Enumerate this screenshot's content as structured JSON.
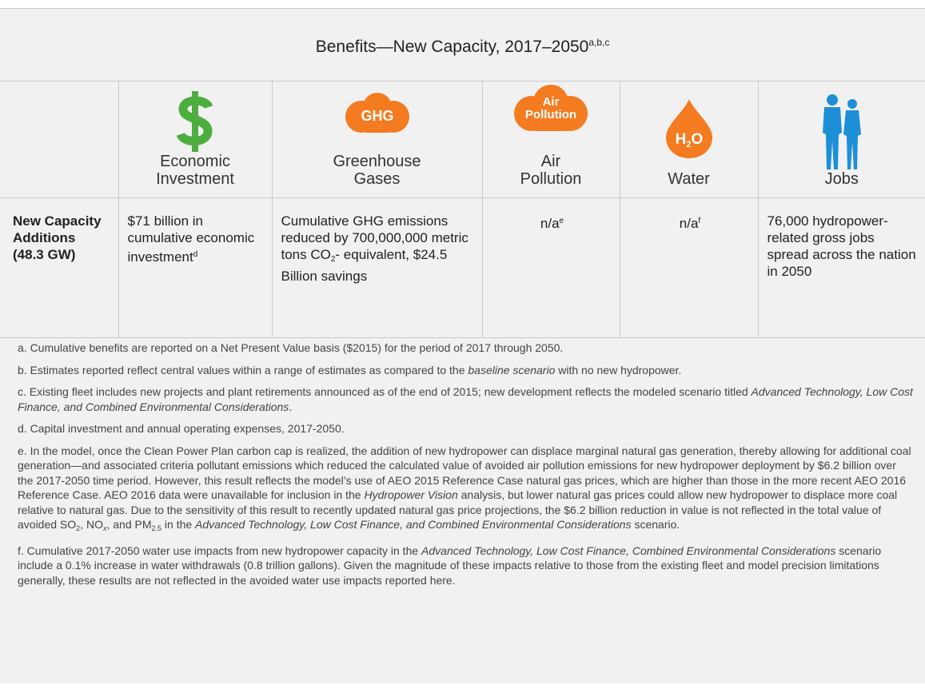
{
  "title": {
    "text": "Benefits—New Capacity, 2017–2050",
    "sup": "a,b,c"
  },
  "columns": [
    {
      "label": [
        "Economic",
        "Investment"
      ]
    },
    {
      "icon": "GHG",
      "label": [
        "Greenhouse",
        "Gases"
      ]
    },
    {
      "icon": [
        "Air",
        "Pollution"
      ],
      "label": [
        "Air",
        "Pollution"
      ]
    },
    {
      "icon": [
        "H",
        "2",
        "O"
      ],
      "label": [
        "Water"
      ]
    },
    {
      "label": [
        "Jobs"
      ]
    }
  ],
  "row": {
    "header": [
      "New Capacity",
      "Additions",
      "(48.3 GW)"
    ],
    "cells": [
      [
        "$71 billion in cumulative economic investment",
        "d"
      ],
      [
        "Cumulative GHG emissions reduced by 700,000,000 metric tons CO",
        "2",
        "- equivalent, $24.5 Billion savings"
      ],
      [
        "n/a",
        "e"
      ],
      [
        "n/a",
        "f"
      ],
      [
        "76,000 hydropower-related gross jobs spread across the nation in 2050"
      ]
    ]
  },
  "footnotes": [
    [
      "a. Cumulative benefits are reported on a Net Present Value basis ($2015) for the period of 2017 through 2050."
    ],
    [
      "b. Estimates reported reflect central values within a range of estimates as compared to the ",
      "baseline scenario",
      " with no new hydropower."
    ],
    [
      "c. Existing fleet includes new projects and plant retirements announced as of the end of 2015; new development reflects the modeled scenario titled ",
      "Advanced Technology, Low Cost Finance, and Combined Environmental Considerations",
      "."
    ],
    [
      "d. Capital investment and annual operating expenses, 2017-2050."
    ],
    [
      "e. In the model, once the Clean Power Plan carbon cap is realized, the addition of new hydropower can displace marginal natural gas generation, thereby allowing for additional coal generation—and associated criteria pollutant emissions which reduced the calculated value of avoided air pollution emissions for new hydropower deployment by $6.2 billion over the 2017-2050 time period. However, this result reflects the model’s use of AEO 2015 Reference Case natural gas prices, which are higher than those in the more recent AEO 2016 Reference Case. AEO 2016 data were unavailable for inclusion in the ",
      "Hydropower Vision",
      " analysis, but lower natural gas prices could allow new hydropower to displace more coal relative to natural gas. Due to the sensitivity of this result to recently updated natural gas price projections, the $6.2 billion reduction in value is not reflected in the total value of avoided SO",
      "2",
      ", NO",
      "x",
      ", and PM",
      "2.5",
      " in the ",
      "Advanced Technology, Low Cost Finance, and Combined Environmental Considerations",
      " scenario."
    ],
    [
      "f. Cumulative 2017-2050 water use impacts from new hydropower capacity in the ",
      "Advanced Technology, Low Cost Finance, Combined Environmental Considerations",
      " scenario include a 0.1% increase in water withdrawals (0.8 trillion gallons). Given the magnitude of these impacts relative to those from the existing fleet and model precision limitations generally, these results are not reflected in the avoided water use impacts reported here."
    ]
  ]
}
